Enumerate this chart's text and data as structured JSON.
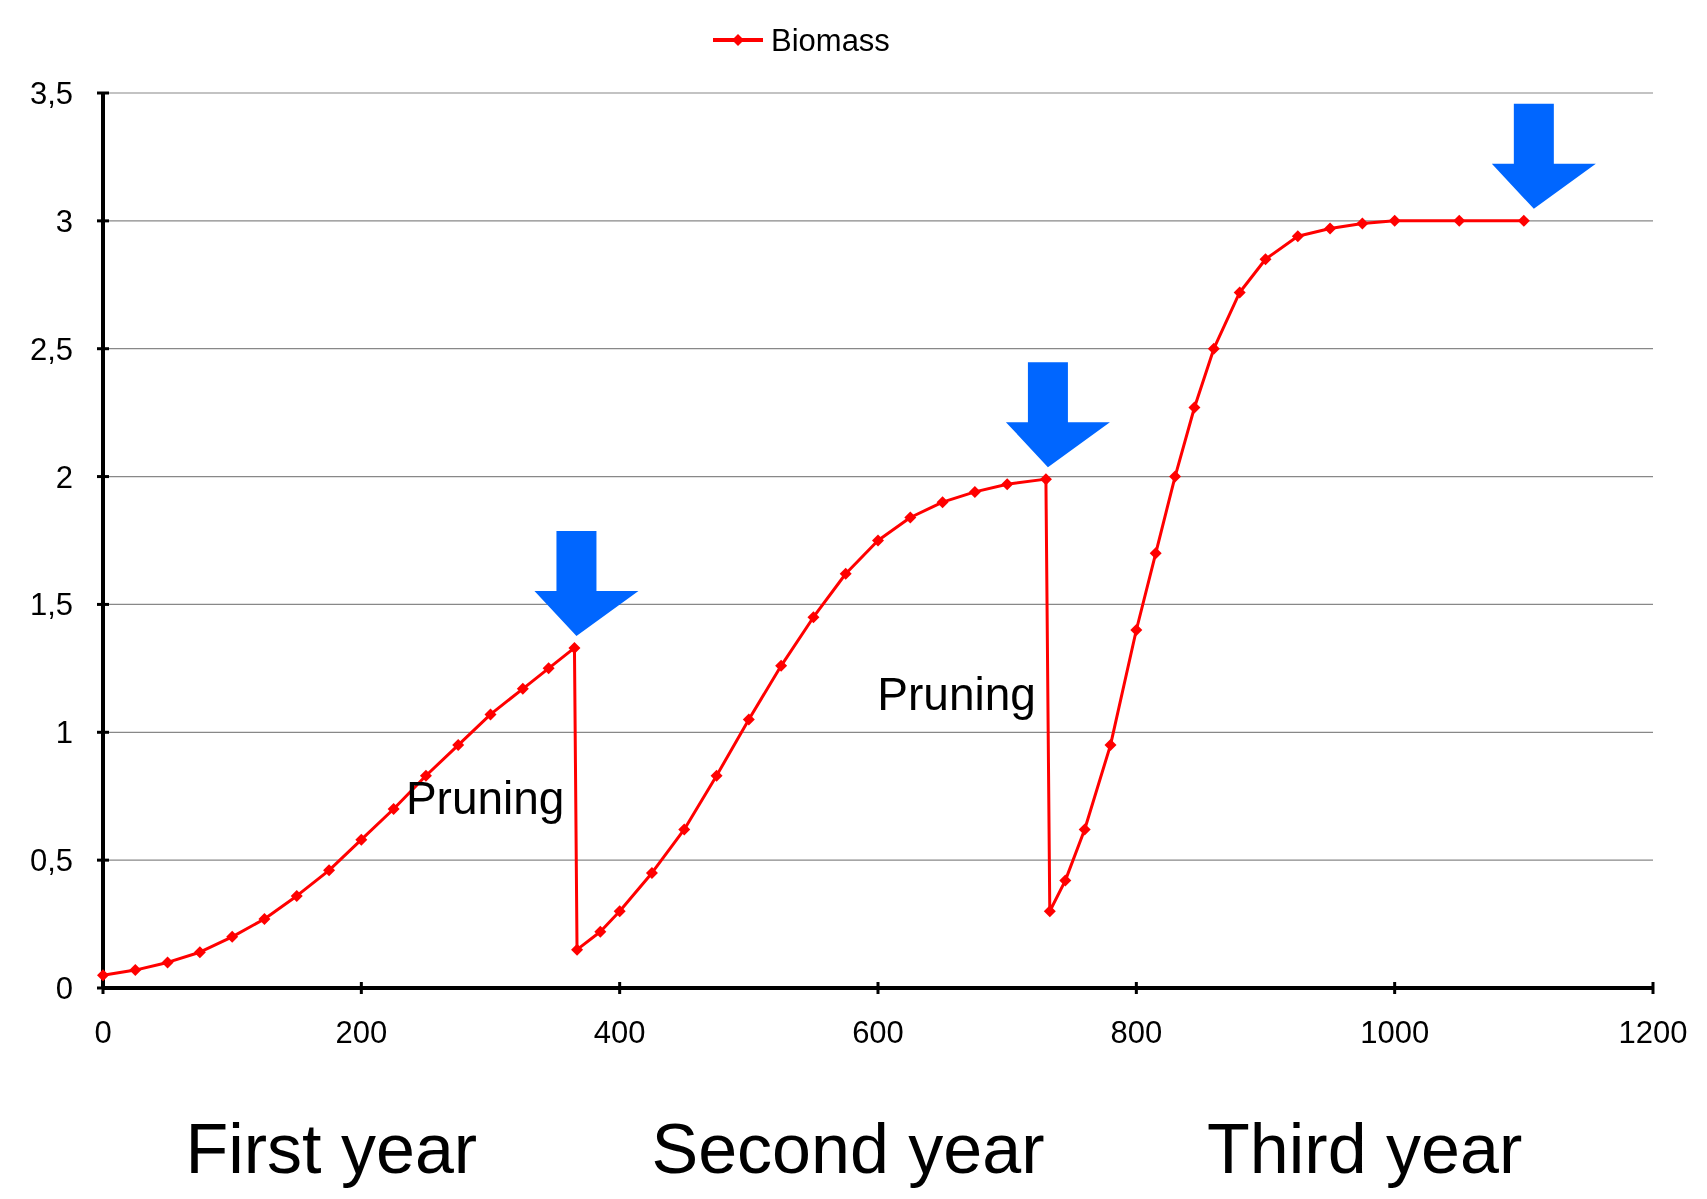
{
  "chart_data": {
    "type": "line",
    "legend": "top",
    "grid": "y",
    "marker": "diamond",
    "line_style": "solid",
    "xlim": [
      0,
      1200
    ],
    "xticks": [
      0,
      200,
      400,
      600,
      800,
      1000,
      1200
    ],
    "ylim": [
      0,
      3.5
    ],
    "yticks": [
      0,
      {
        "value": 0.5,
        "label": "0,5"
      },
      1,
      {
        "value": 1.5,
        "label": "1,5"
      },
      2,
      {
        "value": 2.5,
        "label": "2,5"
      },
      3,
      {
        "value": 3.5,
        "label": "3,5"
      }
    ],
    "series": [
      {
        "name": "Biomass",
        "color": "#ff0000",
        "x": [
          0,
          25,
          50,
          75,
          100,
          125,
          150,
          175,
          200,
          225,
          250,
          275,
          300,
          325,
          345,
          365,
          367,
          385,
          400,
          425,
          450,
          475,
          500,
          525,
          550,
          575,
          600,
          625,
          650,
          675,
          700,
          730,
          733,
          745,
          760,
          780,
          800,
          815,
          830,
          845,
          860,
          880,
          900,
          925,
          950,
          975,
          1000,
          1050,
          1100
        ],
        "values": [
          0.05,
          0.07,
          0.1,
          0.14,
          0.2,
          0.27,
          0.36,
          0.46,
          0.58,
          0.7,
          0.83,
          0.95,
          1.07,
          1.17,
          1.25,
          1.33,
          0.15,
          0.22,
          0.3,
          0.45,
          0.62,
          0.83,
          1.05,
          1.26,
          1.45,
          1.62,
          1.75,
          1.84,
          1.9,
          1.94,
          1.97,
          1.99,
          0.3,
          0.42,
          0.62,
          0.95,
          1.4,
          1.7,
          2.0,
          2.27,
          2.5,
          2.72,
          2.85,
          2.94,
          2.97,
          2.99,
          3.0,
          3.0,
          3.0
        ]
      }
    ],
    "annotations": [
      "Pruning",
      "Pruning",
      "First year",
      "Second year",
      "Third year"
    ]
  }
}
